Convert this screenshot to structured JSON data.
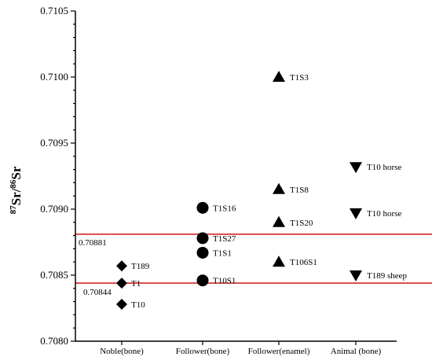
{
  "chart_data": {
    "type": "scatter",
    "ylabel": {
      "sup1": "87",
      "main1": "Sr/",
      "sup2": "86",
      "main2": "Sr"
    },
    "ylim": [
      0.708,
      0.7105
    ],
    "yticks": [
      "0.7080",
      "0.7085",
      "0.7090",
      "0.7095",
      "0.7100",
      "0.7105"
    ],
    "categories": [
      "Noble(bone)",
      "Follower(bone)",
      "Follower(enamel)",
      "Animal (bone)"
    ],
    "reference_lines": [
      {
        "value": 0.70881,
        "label": "0.70881",
        "color": "#cc0000"
      },
      {
        "value": 0.70844,
        "label": "0.70844",
        "color": "#cc0000"
      }
    ],
    "series": [
      {
        "category": 0,
        "marker": "diamond",
        "points": [
          {
            "label": "T189",
            "y": 0.70857
          },
          {
            "label": "T1",
            "y": 0.70844
          },
          {
            "label": "T10",
            "y": 0.70828
          }
        ]
      },
      {
        "category": 1,
        "marker": "circle",
        "points": [
          {
            "label": "T1S16",
            "y": 0.70901
          },
          {
            "label": "T1S27",
            "y": 0.70878
          },
          {
            "label": "T1S1",
            "y": 0.70867
          },
          {
            "label": "T10S1",
            "y": 0.70846
          }
        ]
      },
      {
        "category": 2,
        "marker": "triangle-up",
        "points": [
          {
            "label": "T1S3",
            "y": 0.71
          },
          {
            "label": "T1S8",
            "y": 0.70915
          },
          {
            "label": "T1S20",
            "y": 0.7089
          },
          {
            "label": "T106S1",
            "y": 0.7086
          }
        ]
      },
      {
        "category": 3,
        "marker": "triangle-down",
        "points": [
          {
            "label": "T10 horse",
            "y": 0.70932
          },
          {
            "label": "T10 horse",
            "y": 0.70897
          },
          {
            "label": "T189 sheep",
            "y": 0.7085
          }
        ]
      }
    ]
  }
}
